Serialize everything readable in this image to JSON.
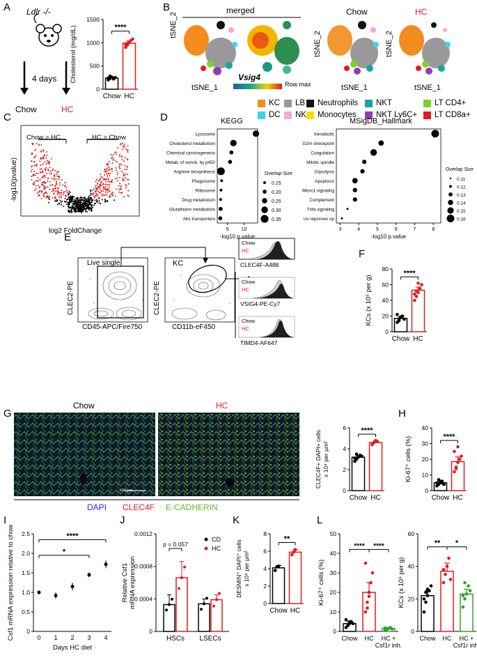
{
  "panels": [
    "A",
    "B",
    "C",
    "D",
    "E",
    "F",
    "G",
    "H",
    "I",
    "J",
    "K",
    "L"
  ],
  "colors": {
    "red": "#e31a1c",
    "green": "#33a02c",
    "black": "#000000"
  },
  "A": {
    "mouse_label": "Ldlr -/-",
    "duration": "4 days",
    "left": "Chow",
    "right": "HC",
    "chart_data": {
      "type": "bar",
      "categories": [
        "Chow",
        "HC"
      ],
      "tick_labels": [
        "Chow",
        "HC"
      ],
      "values": [
        240,
        990
      ],
      "ylabel": "Cholesterol (mg/dL)",
      "ylim": [
        0,
        1500
      ],
      "yticks": [
        0,
        500,
        1000,
        1500
      ],
      "significance": "****"
    }
  },
  "B": {
    "merged": "merged",
    "chow": "Chow",
    "hc": "HC",
    "y_axis": "tSNE_2",
    "x_axis": "tSNE_1",
    "gene": "Vsig4",
    "row_max": "Row max",
    "legend": [
      {
        "label": "KC",
        "color": "#f28c1c"
      },
      {
        "label": "LB",
        "color": "#999999"
      },
      {
        "label": "Neutrophils",
        "color": "#111111"
      },
      {
        "label": "NKT",
        "color": "#1aa6a0"
      },
      {
        "label": "LT CD4+",
        "color": "#7ed321"
      },
      {
        "label": "DC",
        "color": "#3fd3e6"
      },
      {
        "label": "NK",
        "color": "#f5a8e0"
      },
      {
        "label": "Monocytes",
        "color": "#f5e000"
      },
      {
        "label": "NKT Ly6C+",
        "color": "#8e3fb0"
      },
      {
        "label": "LT CD8a+",
        "color": "#e31a1c"
      }
    ]
  },
  "C": {
    "chow_gt_hc": "Chow > HC",
    "hc_gt_chow": "HC > Chow",
    "ylabel": "-log10(pvalue)",
    "xlabel": "log2 FoldChange"
  },
  "D": {
    "kegg": {
      "title": "KEGG",
      "xlabel": "-log10 p.value",
      "chart_data": {
        "type": "scatter",
        "terms": [
          "Lysosome",
          "Cholesterol metabolism",
          "Chemical carcinogenesis",
          "Metab. of xenob. by p450",
          "Arginine biosynthesis",
          "Phagosome",
          "Ribosome",
          "Drug metabolism",
          "Glutathione metabolism",
          "Abc transporters"
        ],
        "x": [
          13.5,
          6.8,
          6.2,
          5.8,
          3.1,
          3.3,
          3.1,
          3.0,
          3.0,
          2.9
        ],
        "size": [
          0.3,
          0.3,
          0.2,
          0.2,
          0.35,
          0.15,
          0.15,
          0.15,
          0.2,
          0.2
        ],
        "xticks": [
          5,
          10
        ],
        "xlim": [
          2,
          14
        ]
      },
      "legend_title": "Overlap Size",
      "legend": [
        "0.15",
        "0.20",
        "0.25",
        "0.30",
        "0.35"
      ]
    },
    "hallmark": {
      "title": "MSigDB_Hallmark",
      "xlabel": "-log10 p.value",
      "chart_data": {
        "type": "scatter",
        "terms": [
          "Xenobiotic",
          "G2m checkpoint",
          "Coagulation",
          "Mitotic spindle",
          "Glycolysis",
          "Apoptosis",
          "Mtorc1 signaling",
          "Complement",
          "Tnfa signaling",
          "Uv reponses up"
        ],
        "x": [
          8.1,
          5.2,
          4.8,
          4.3,
          4.2,
          3.8,
          3.8,
          3.8,
          3.4,
          3.1
        ],
        "size": [
          0.16,
          0.14,
          0.15,
          0.13,
          0.13,
          0.14,
          0.13,
          0.13,
          0.11,
          0.11
        ],
        "xticks": [
          3,
          4,
          5,
          6,
          7,
          8
        ],
        "xlim": [
          2.8,
          8.4
        ]
      },
      "legend_title": "Overlap Size",
      "legend": [
        "0.11",
        "0.12",
        "0.13",
        "0.14",
        "0.15",
        "0.16"
      ]
    }
  },
  "E": {
    "live_single": "Live single",
    "kc": "KC",
    "y1": "CLEC2-PE",
    "x1": "CD45-APC/Fire750",
    "y2": "CLEC2-PE",
    "x2": "CD11b-eF450",
    "hist": [
      {
        "chow": "Chow",
        "hc": "HC",
        "marker": "CLEC4F-A488"
      },
      {
        "chow": "Chow",
        "hc": "HC",
        "marker": "VSIG4-PE-Cy7"
      },
      {
        "chow": "Chow",
        "hc": "HC",
        "marker": "TIMD4-AF647"
      }
    ]
  },
  "F": {
    "chart_data": {
      "type": "bar",
      "categories": [
        "Chow",
        "HC"
      ],
      "tick_labels": [
        "Chow",
        "HC"
      ],
      "values": [
        17,
        53
      ],
      "ylabel": "KCs (x 10⁵ per g)",
      "ylim": [
        0,
        80
      ],
      "yticks": [
        0,
        20,
        40,
        60,
        80
      ],
      "significance": "****"
    }
  },
  "G": {
    "chow": "Chow",
    "hc": "HC",
    "scalebar": "100 μm",
    "dapi": "DAPI",
    "clec4f": "CLEC4F",
    "ecad": "E-CADHERIN",
    "chart_data": {
      "type": "bar",
      "categories": [
        "Chow",
        "HC"
      ],
      "tick_labels": [
        "Chow",
        "HC"
      ],
      "values": [
        3.2,
        4.6
      ],
      "ylabel": "CLEC4F+ DAPI+ cells x 10⁴ per μm²",
      "ylim": [
        0,
        6
      ],
      "yticks": [
        0,
        2,
        4,
        6
      ],
      "significance": "****"
    }
  },
  "H": {
    "chart_data": {
      "type": "bar",
      "categories": [
        "Chow",
        "HC"
      ],
      "tick_labels": [
        "Chow",
        "HC"
      ],
      "values": [
        5,
        18.5
      ],
      "ylabel": "Ki-67⁺ cells (%)",
      "ylim": [
        0,
        40
      ],
      "yticks": [
        0,
        10,
        20,
        30,
        40
      ],
      "significance": "****"
    }
  },
  "I": {
    "chart_data": {
      "type": "scatter",
      "x": [
        0,
        1,
        2,
        3,
        4
      ],
      "y": [
        1.0,
        0.92,
        1.15,
        1.45,
        1.72
      ],
      "err": [
        0.05,
        0.08,
        0.1,
        0.06,
        0.1
      ],
      "ylabel": "Csf1 mRNA expression relative to chow",
      "xlabel": "Days HC diet",
      "ylim": [
        0,
        2.5
      ],
      "yticks": [
        0,
        0.5,
        1.0,
        1.5,
        2.0,
        2.5
      ],
      "xticks": [
        0,
        1,
        2,
        3,
        4
      ],
      "sig": [
        {
          "from": 0,
          "to": 3,
          "label": "*"
        },
        {
          "from": 0,
          "to": 4,
          "label": "****"
        }
      ]
    }
  },
  "J": {
    "chart_data": {
      "type": "bar",
      "categories": [
        "HSCs",
        "LSECs"
      ],
      "tick_labels": [
        "HSCs",
        "LSECs"
      ],
      "series": [
        {
          "name": "CD",
          "values": [
            0.00033,
            0.00034
          ]
        },
        {
          "name": "HC",
          "values": [
            0.00066,
            0.00039
          ]
        }
      ],
      "ylabel": "Relative Csf1 mRNA expression",
      "ylim": [
        0,
        0.0012
      ],
      "yticks": [
        "0",
        "0.0004",
        "0.0008",
        "0.0012"
      ],
      "annotation": "p = 0.057"
    }
  },
  "K": {
    "chart_data": {
      "type": "bar",
      "categories": [
        "Chow",
        "HC"
      ],
      "tick_labels": [
        "Chow",
        "HC"
      ],
      "values": [
        4.1,
        5.9
      ],
      "ylabel": "DESMIN⁺ DAPI⁺ cells x 10⁴ per μm²",
      "ylim": [
        0,
        8
      ],
      "yticks": [
        0,
        2,
        4,
        6,
        8
      ],
      "significance": "**"
    }
  },
  "L": {
    "charts": [
      {
        "type": "bar",
        "categories": [
          "Chow",
          "HC",
          "HC + Csf1r inh."
        ],
        "tick_labels": [
          "Chow",
          "HC",
          "HC +",
          "Csf1r inh."
        ],
        "values": [
          4,
          20,
          1.5
        ],
        "ylabel": "Ki-67⁺ cells (%)",
        "ylim": [
          0,
          50
        ],
        "yticks": [
          0,
          10,
          20,
          30,
          40,
          50
        ],
        "significance": [
          "****",
          "****"
        ]
      },
      {
        "type": "bar",
        "categories": [
          "Chow",
          "HC",
          "HC + Csf1r inh."
        ],
        "tick_labels": [
          "Chow",
          "HC",
          "HC +",
          "Csf1r inh."
        ],
        "values": [
          22,
          37,
          23
        ],
        "ylabel": "KCs (x 10⁵ per g)",
        "ylim": [
          0,
          60
        ],
        "yticks": [
          0,
          20,
          40,
          60
        ],
        "significance": [
          "**",
          "*"
        ]
      }
    ]
  }
}
